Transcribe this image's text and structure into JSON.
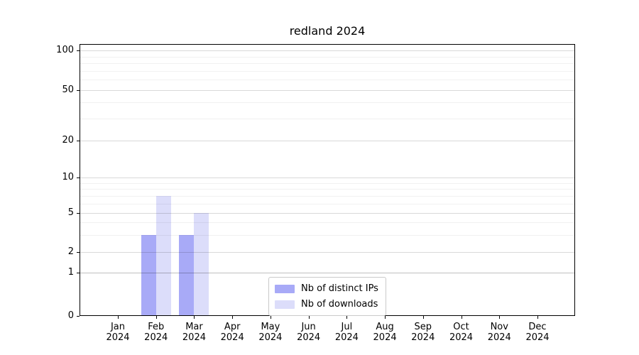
{
  "title": "redland 2024",
  "legend": {
    "items": [
      "Nb of distinct IPs",
      "Nb of downloads"
    ]
  },
  "y_axis": {
    "tick_labels": [
      "0",
      "1",
      "2",
      "5",
      "10",
      "20",
      "50",
      "100"
    ]
  },
  "x_axis": {
    "tick_labels": [
      "Jan 2024",
      "Feb 2024",
      "Mar 2024",
      "Apr 2024",
      "May 2024",
      "Jun 2024",
      "Jul 2024",
      "Aug 2024",
      "Sep 2024",
      "Oct 2024",
      "Nov 2024",
      "Dec 2024"
    ]
  },
  "colors": {
    "distinct_ips": "#a8aaf7",
    "downloads": "#dcddfa",
    "axis": "#000000",
    "background": "#ffffff"
  },
  "chart_data": {
    "type": "bar",
    "title": "redland 2024",
    "categories": [
      "Jan 2024",
      "Feb 2024",
      "Mar 2024",
      "Apr 2024",
      "May 2024",
      "Jun 2024",
      "Jul 2024",
      "Aug 2024",
      "Sep 2024",
      "Oct 2024",
      "Nov 2024",
      "Dec 2024"
    ],
    "series": [
      {
        "name": "Nb of distinct IPs",
        "color": "#a8aaf7",
        "values": [
          0,
          3,
          3,
          0,
          0,
          0,
          0,
          0,
          0,
          0,
          0,
          0
        ]
      },
      {
        "name": "Nb of downloads",
        "color": "#dcddfa",
        "values": [
          0,
          7,
          5,
          0,
          0,
          0,
          0,
          0,
          0,
          0,
          0,
          0
        ]
      }
    ],
    "xlabel": "",
    "ylabel": "",
    "yscale": "symlog",
    "y_ticks": [
      0,
      1,
      2,
      5,
      10,
      20,
      50,
      100
    ],
    "y_minor_ticks": [
      3,
      4,
      6,
      7,
      8,
      9,
      30,
      40,
      60,
      70,
      80,
      90
    ],
    "ylim": [
      0,
      112
    ],
    "grid": true,
    "legend_position": "lower center"
  }
}
